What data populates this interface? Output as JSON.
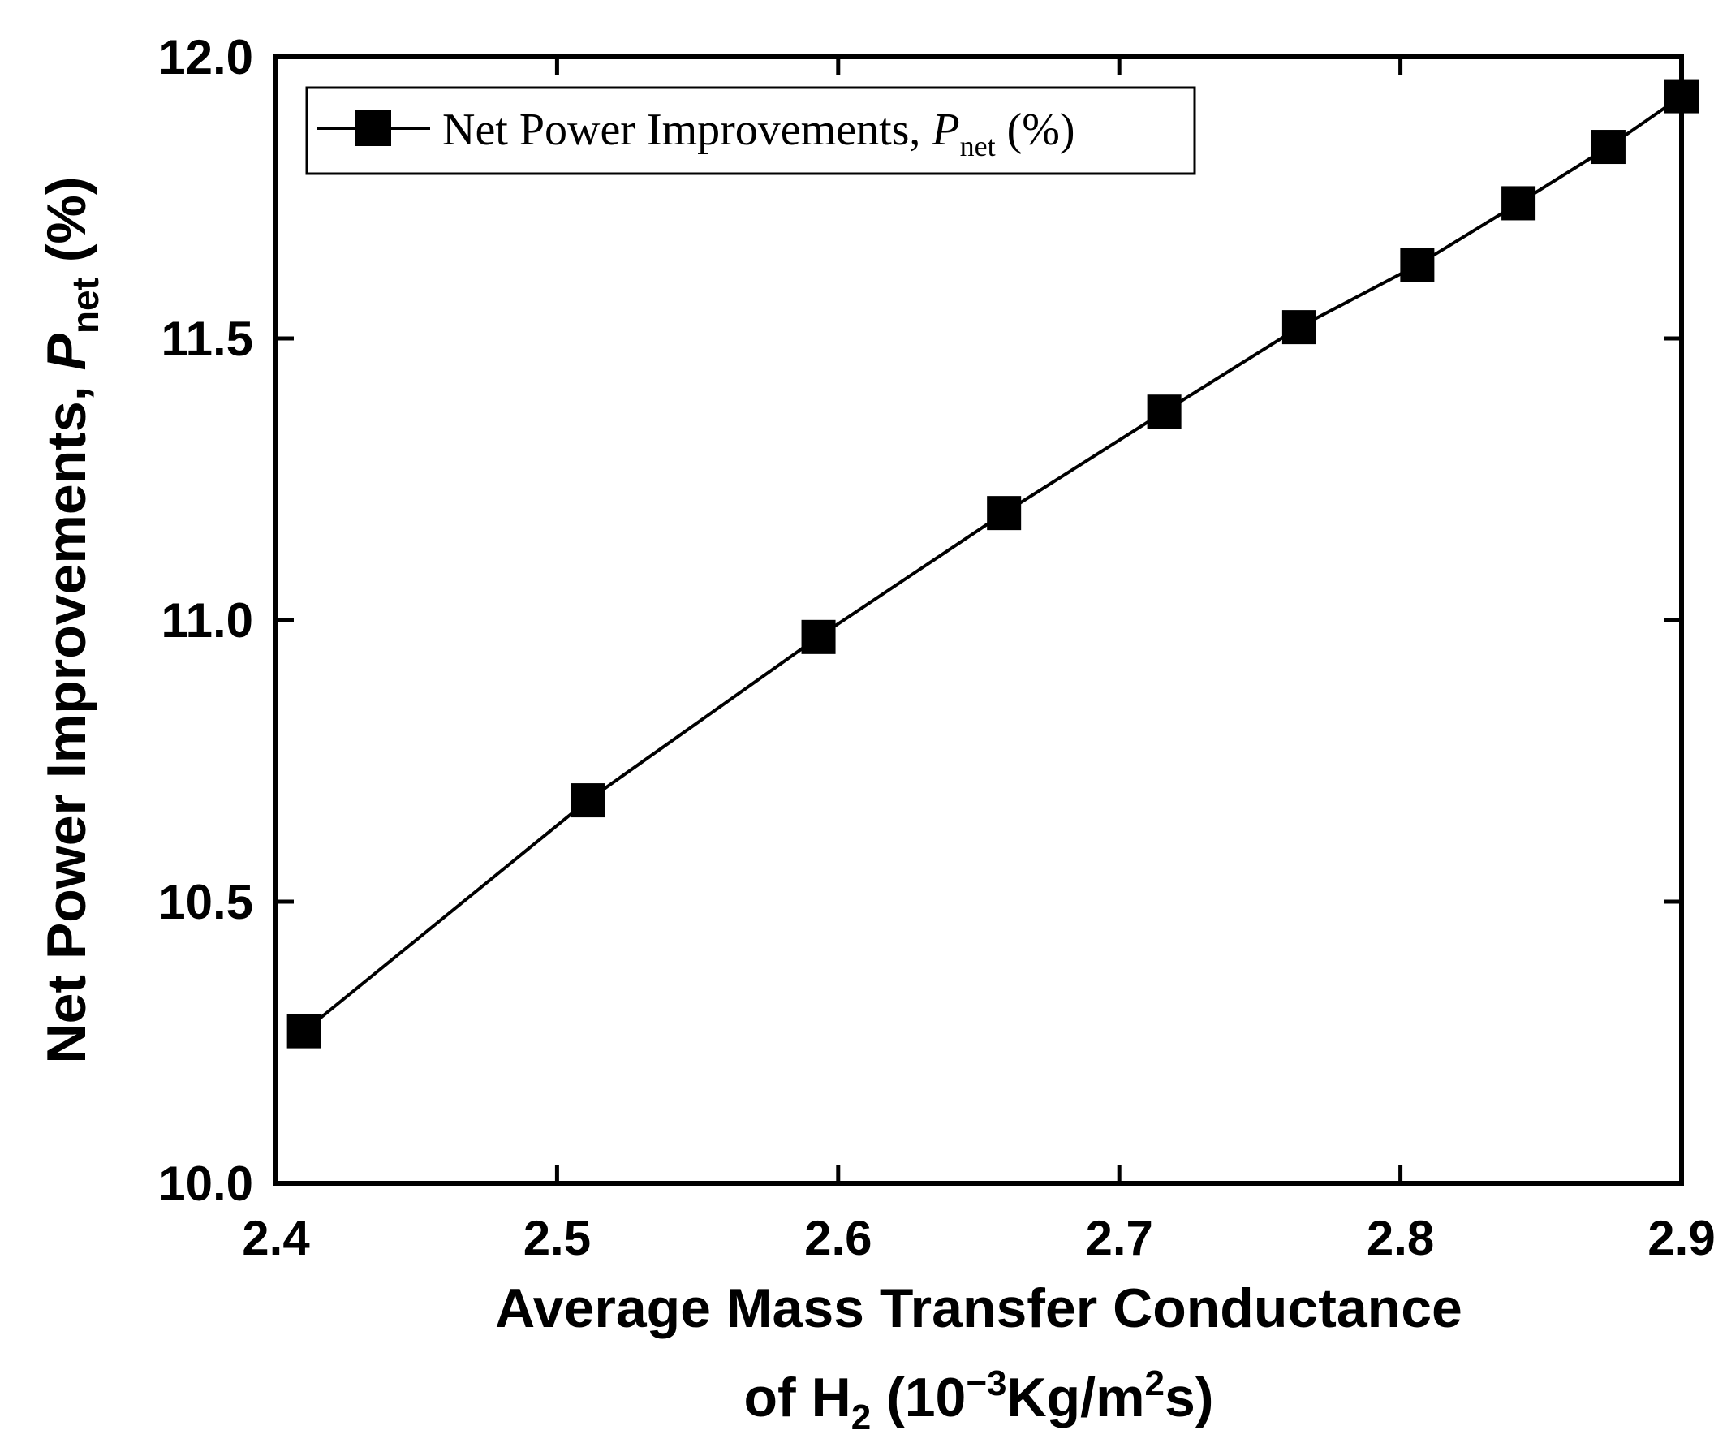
{
  "chart_data": {
    "type": "line",
    "title": "",
    "xlabel_main": "Average Mass Transfer Conductance",
    "xlabel_line2": {
      "prefix": "of H",
      "sub": "2",
      "mid": " (10",
      "sup": "−3",
      "unit": "Kg/m",
      "unit_sup": "2",
      "end": "s)"
    },
    "ylabel": {
      "prefix": "Net Power Improvements, ",
      "symbol": "P",
      "sub": "net",
      "suffix": " (%)"
    },
    "xlim": [
      2.4,
      2.9
    ],
    "ylim": [
      10.0,
      12.0
    ],
    "xticks": [
      "2.4",
      "2.5",
      "2.6",
      "2.7",
      "2.8",
      "2.9"
    ],
    "yticks": [
      "10.0",
      "10.5",
      "11.0",
      "11.5",
      "12.0"
    ],
    "legend": {
      "placement": "top-left",
      "text_prefix": "Net Power Improvements, ",
      "symbol": "P",
      "sub": "net",
      "suffix": " (%)"
    },
    "series": [
      {
        "name": "Net Power Improvements, Pnet (%)",
        "marker": "square",
        "color": "#000000",
        "x": [
          2.41,
          2.511,
          2.593,
          2.659,
          2.716,
          2.764,
          2.806,
          2.842,
          2.874,
          2.9
        ],
        "y": [
          10.27,
          10.68,
          10.97,
          11.19,
          11.37,
          11.52,
          11.63,
          11.74,
          11.84,
          11.93
        ]
      }
    ]
  }
}
